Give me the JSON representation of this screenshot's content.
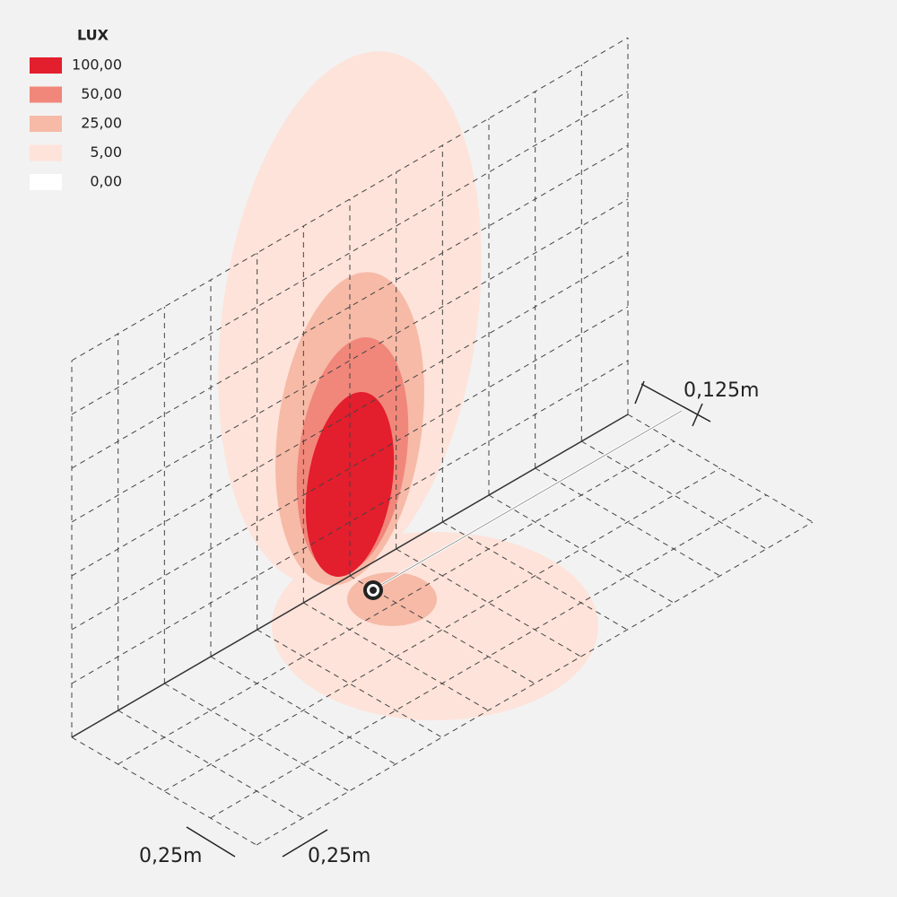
{
  "legend": {
    "title": "LUX",
    "items": [
      {
        "label": "100,00",
        "color": "#e31e2d"
      },
      {
        "label": "50,00",
        "color": "#f0877a"
      },
      {
        "label": "25,00",
        "color": "#f6baa7"
      },
      {
        "label": "5,00",
        "color": "#fde3da"
      },
      {
        "label": "0,00",
        "color": "#ffffff"
      }
    ]
  },
  "dimensions": {
    "offset": "0,125m",
    "grid_depth": "0,25m",
    "grid_width": "0,25m"
  }
}
